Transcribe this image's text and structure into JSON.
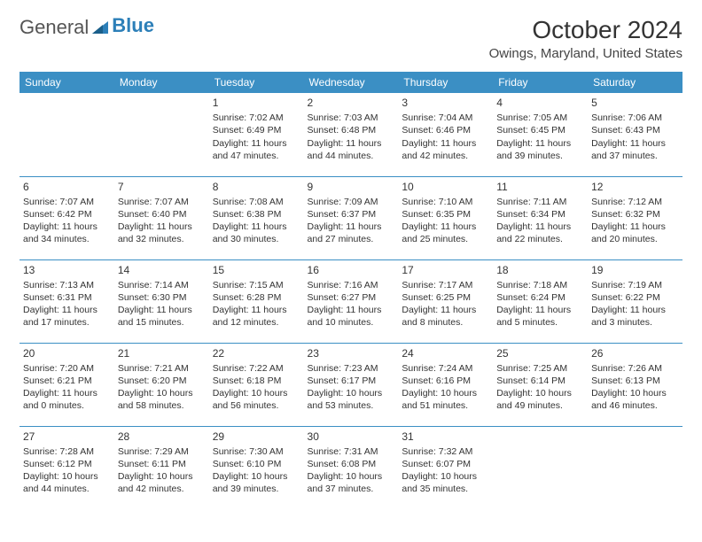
{
  "logo": {
    "text1": "General",
    "text2": "Blue"
  },
  "title": "October 2024",
  "location": "Owings, Maryland, United States",
  "colors": {
    "header_bg": "#3b8fc4",
    "header_fg": "#ffffff",
    "border": "#3b8fc4",
    "text": "#333333",
    "logo_accent": "#2c7fb8"
  },
  "weekdays": [
    "Sunday",
    "Monday",
    "Tuesday",
    "Wednesday",
    "Thursday",
    "Friday",
    "Saturday"
  ],
  "cells": [
    [
      null,
      null,
      {
        "n": "1",
        "sr": "7:02 AM",
        "ss": "6:49 PM",
        "dl": "11 hours and 47 minutes."
      },
      {
        "n": "2",
        "sr": "7:03 AM",
        "ss": "6:48 PM",
        "dl": "11 hours and 44 minutes."
      },
      {
        "n": "3",
        "sr": "7:04 AM",
        "ss": "6:46 PM",
        "dl": "11 hours and 42 minutes."
      },
      {
        "n": "4",
        "sr": "7:05 AM",
        "ss": "6:45 PM",
        "dl": "11 hours and 39 minutes."
      },
      {
        "n": "5",
        "sr": "7:06 AM",
        "ss": "6:43 PM",
        "dl": "11 hours and 37 minutes."
      }
    ],
    [
      {
        "n": "6",
        "sr": "7:07 AM",
        "ss": "6:42 PM",
        "dl": "11 hours and 34 minutes."
      },
      {
        "n": "7",
        "sr": "7:07 AM",
        "ss": "6:40 PM",
        "dl": "11 hours and 32 minutes."
      },
      {
        "n": "8",
        "sr": "7:08 AM",
        "ss": "6:38 PM",
        "dl": "11 hours and 30 minutes."
      },
      {
        "n": "9",
        "sr": "7:09 AM",
        "ss": "6:37 PM",
        "dl": "11 hours and 27 minutes."
      },
      {
        "n": "10",
        "sr": "7:10 AM",
        "ss": "6:35 PM",
        "dl": "11 hours and 25 minutes."
      },
      {
        "n": "11",
        "sr": "7:11 AM",
        "ss": "6:34 PM",
        "dl": "11 hours and 22 minutes."
      },
      {
        "n": "12",
        "sr": "7:12 AM",
        "ss": "6:32 PM",
        "dl": "11 hours and 20 minutes."
      }
    ],
    [
      {
        "n": "13",
        "sr": "7:13 AM",
        "ss": "6:31 PM",
        "dl": "11 hours and 17 minutes."
      },
      {
        "n": "14",
        "sr": "7:14 AM",
        "ss": "6:30 PM",
        "dl": "11 hours and 15 minutes."
      },
      {
        "n": "15",
        "sr": "7:15 AM",
        "ss": "6:28 PM",
        "dl": "11 hours and 12 minutes."
      },
      {
        "n": "16",
        "sr": "7:16 AM",
        "ss": "6:27 PM",
        "dl": "11 hours and 10 minutes."
      },
      {
        "n": "17",
        "sr": "7:17 AM",
        "ss": "6:25 PM",
        "dl": "11 hours and 8 minutes."
      },
      {
        "n": "18",
        "sr": "7:18 AM",
        "ss": "6:24 PM",
        "dl": "11 hours and 5 minutes."
      },
      {
        "n": "19",
        "sr": "7:19 AM",
        "ss": "6:22 PM",
        "dl": "11 hours and 3 minutes."
      }
    ],
    [
      {
        "n": "20",
        "sr": "7:20 AM",
        "ss": "6:21 PM",
        "dl": "11 hours and 0 minutes."
      },
      {
        "n": "21",
        "sr": "7:21 AM",
        "ss": "6:20 PM",
        "dl": "10 hours and 58 minutes."
      },
      {
        "n": "22",
        "sr": "7:22 AM",
        "ss": "6:18 PM",
        "dl": "10 hours and 56 minutes."
      },
      {
        "n": "23",
        "sr": "7:23 AM",
        "ss": "6:17 PM",
        "dl": "10 hours and 53 minutes."
      },
      {
        "n": "24",
        "sr": "7:24 AM",
        "ss": "6:16 PM",
        "dl": "10 hours and 51 minutes."
      },
      {
        "n": "25",
        "sr": "7:25 AM",
        "ss": "6:14 PM",
        "dl": "10 hours and 49 minutes."
      },
      {
        "n": "26",
        "sr": "7:26 AM",
        "ss": "6:13 PM",
        "dl": "10 hours and 46 minutes."
      }
    ],
    [
      {
        "n": "27",
        "sr": "7:28 AM",
        "ss": "6:12 PM",
        "dl": "10 hours and 44 minutes."
      },
      {
        "n": "28",
        "sr": "7:29 AM",
        "ss": "6:11 PM",
        "dl": "10 hours and 42 minutes."
      },
      {
        "n": "29",
        "sr": "7:30 AM",
        "ss": "6:10 PM",
        "dl": "10 hours and 39 minutes."
      },
      {
        "n": "30",
        "sr": "7:31 AM",
        "ss": "6:08 PM",
        "dl": "10 hours and 37 minutes."
      },
      {
        "n": "31",
        "sr": "7:32 AM",
        "ss": "6:07 PM",
        "dl": "10 hours and 35 minutes."
      },
      null,
      null
    ]
  ],
  "labels": {
    "sunrise": "Sunrise:",
    "sunset": "Sunset:",
    "daylight": "Daylight:"
  }
}
